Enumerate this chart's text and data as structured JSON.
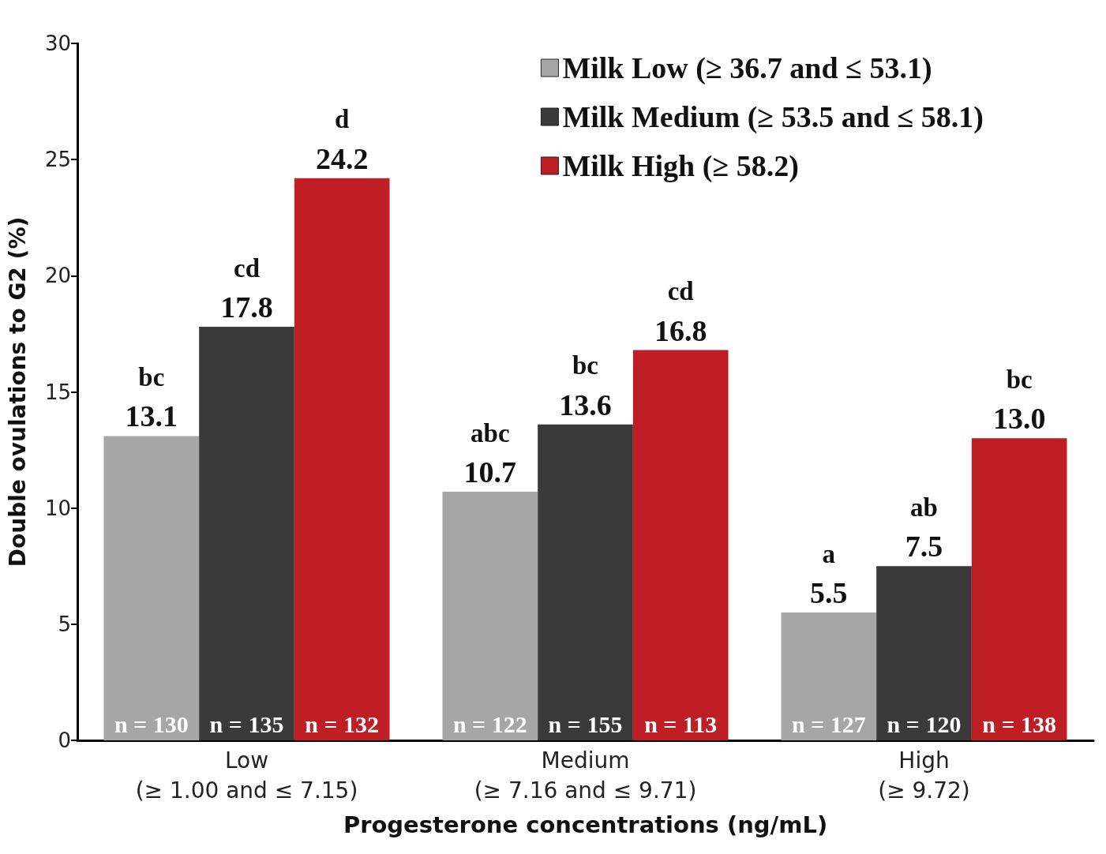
{
  "chart_data": {
    "type": "bar",
    "categories": [
      "Low\n(≥ 1.00 and ≤ 7.15)",
      "Medium\n(≥ 7.16 and ≤ 9.71)",
      "High\n(≥ 9.72)"
    ],
    "series": [
      {
        "name": "Milk Low (≥ 36.7 and ≤ 53.1)",
        "color": "#a6a6a6",
        "values": [
          13.1,
          10.7,
          5.5
        ],
        "value_labels": [
          "13.1",
          "10.7",
          "5.5"
        ]
      },
      {
        "name": "Milk Medium (≥ 53.5 and ≤ 58.1)",
        "color": "#3a3a3a",
        "values": [
          17.8,
          13.6,
          7.5
        ],
        "value_labels": [
          "17.8",
          "13.6",
          "7.5"
        ]
      },
      {
        "name": "Milk High (≥ 58.2)",
        "color": "#be1e24",
        "values": [
          24.2,
          16.8,
          13.0
        ],
        "value_labels": [
          "24.2",
          "16.8",
          "13.0"
        ]
      }
    ],
    "xlabel": "Progesterone concentrations (ng/mL)",
    "ylabel": "Double ovulations to G2 (%)",
    "ylim": [
      0,
      30
    ],
    "yticks": [
      0,
      5,
      10,
      15,
      20,
      25,
      30
    ],
    "grid": false,
    "legend": "top right",
    "annotations": [
      "bc",
      "cd",
      "d",
      "abc",
      "bc",
      "cd",
      "a",
      "ab",
      "bc",
      "n = 130",
      "n = 135",
      "n = 132",
      "n = 122",
      "n = 155",
      "n = 113",
      "n = 127",
      "n = 120",
      "n = 138"
    ]
  }
}
